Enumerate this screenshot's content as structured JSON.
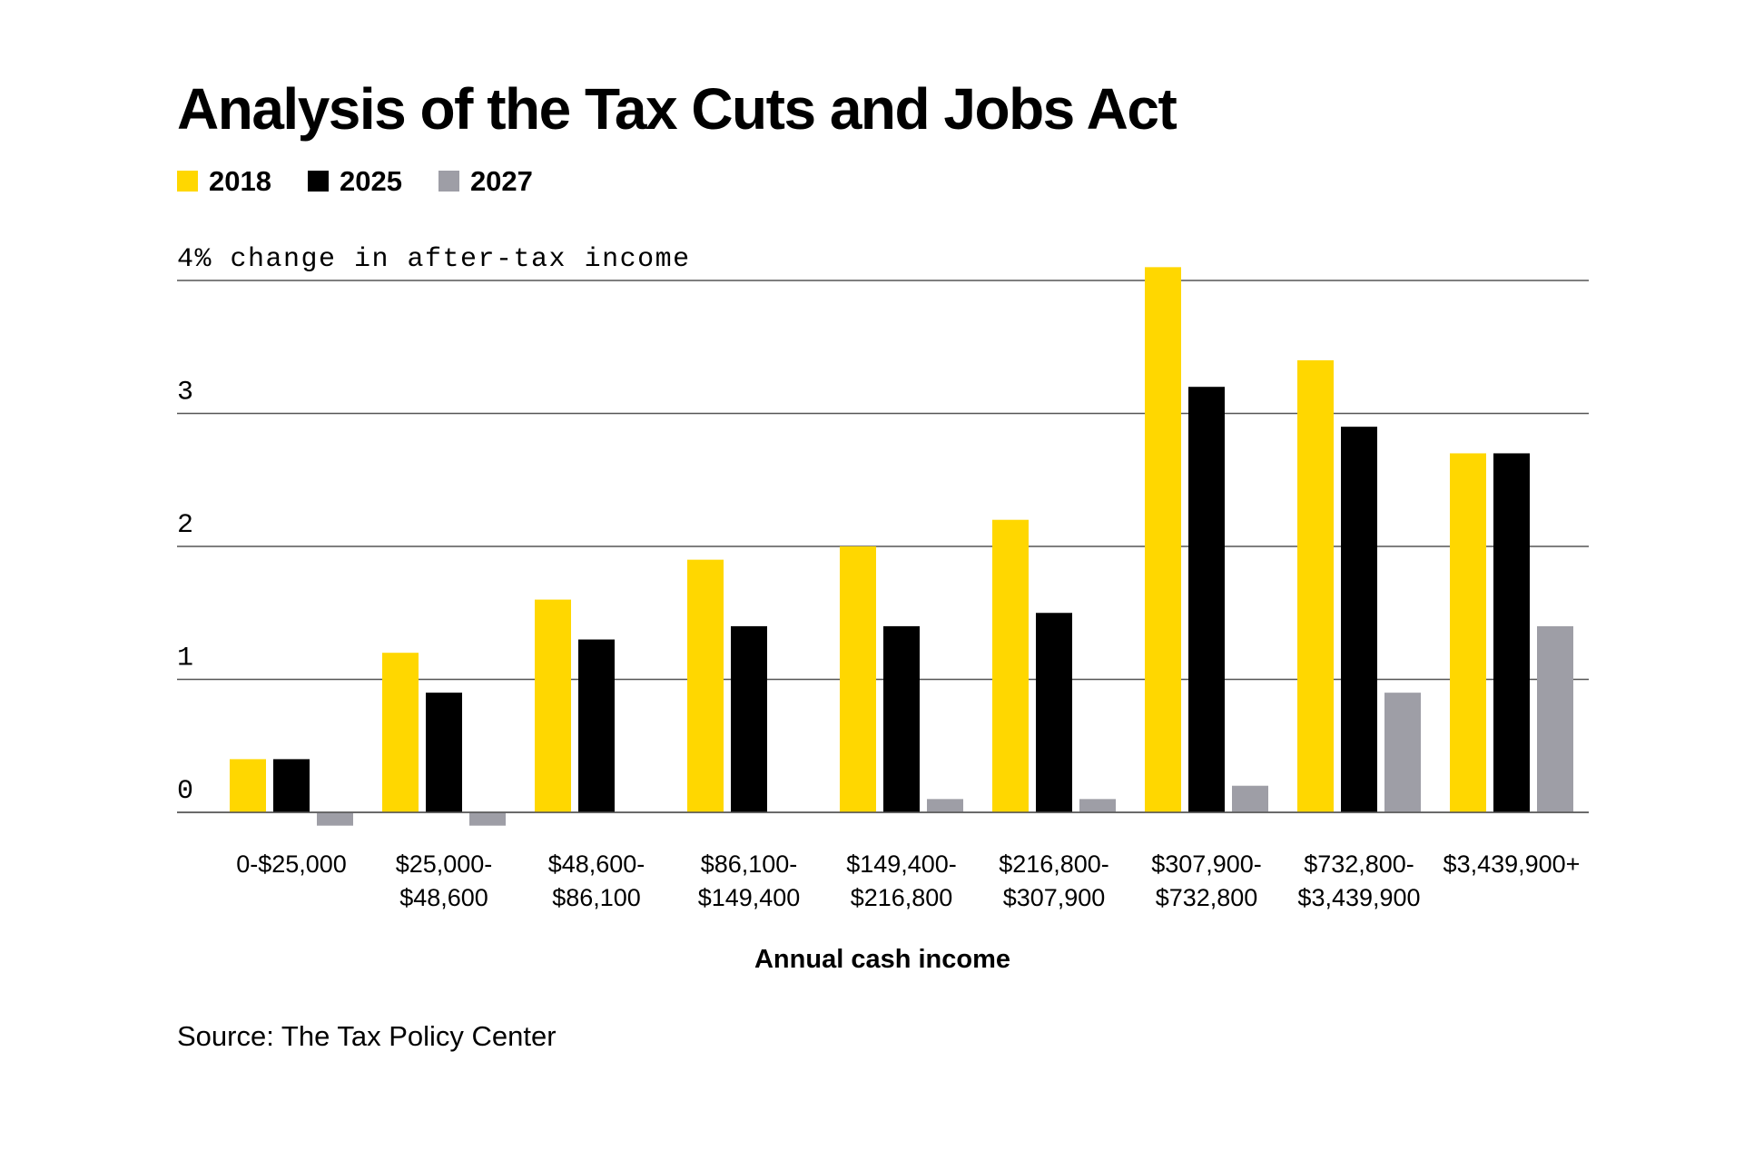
{
  "source": "Source: The Tax Policy Center",
  "colors": {
    "2018": "#FFD700",
    "2025": "#000000",
    "2027": "#9E9EA6",
    "grid": "#555555",
    "text": "#000000"
  },
  "chart_data": {
    "type": "bar",
    "title": "Analysis of the Tax Cuts and Jobs Act",
    "xlabel": "Annual cash income",
    "ylabel": "% change in after-tax income",
    "ylim": [
      0,
      4
    ],
    "yticks": [
      {
        "value": 0,
        "label": "0"
      },
      {
        "value": 1,
        "label": "1"
      },
      {
        "value": 2,
        "label": "2"
      },
      {
        "value": 3,
        "label": "3"
      },
      {
        "value": 4,
        "label": "4% change in after-tax income"
      }
    ],
    "grid": true,
    "legend_position": "top-left",
    "categories": [
      [
        "0-$25,000"
      ],
      [
        "$25,000-",
        "$48,600"
      ],
      [
        "$48,600-",
        "$86,100"
      ],
      [
        "$86,100-",
        "$149,400"
      ],
      [
        "$149,400-",
        "$216,800"
      ],
      [
        "$216,800-",
        "$307,900"
      ],
      [
        "$307,900-",
        "$732,800"
      ],
      [
        "$732,800-",
        "$3,439,900"
      ],
      [
        "$3,439,900+"
      ]
    ],
    "series": [
      {
        "name": "2018",
        "values": [
          0.4,
          1.2,
          1.6,
          1.9,
          2.0,
          2.2,
          4.1,
          3.4,
          2.7
        ]
      },
      {
        "name": "2025",
        "values": [
          0.4,
          0.9,
          1.3,
          1.4,
          1.4,
          1.5,
          3.2,
          2.9,
          2.7
        ]
      },
      {
        "name": "2027",
        "values": [
          -0.1,
          -0.1,
          0.0,
          0.0,
          0.1,
          0.1,
          0.2,
          0.9,
          1.4
        ]
      }
    ]
  }
}
